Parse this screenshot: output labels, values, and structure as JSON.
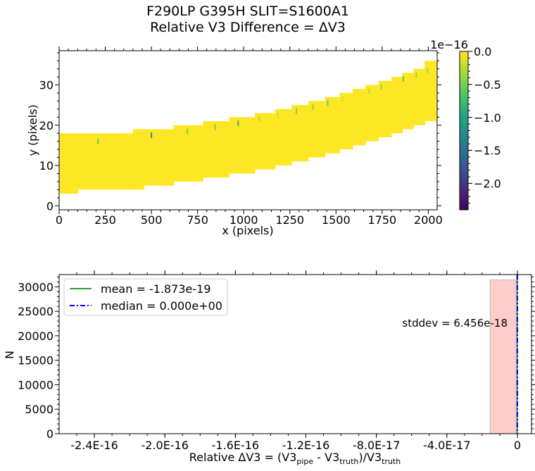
{
  "title_line1": "F290LP   G395H   SLIT=S1600A1",
  "title_line2": "Relative V3 Difference = ΔV3",
  "chart_data": [
    {
      "type": "heatmap",
      "title": "F290LP   G395H   SLIT=S1600A1 / Relative V3 Difference = ΔV3",
      "xlabel": "x (pixels)",
      "ylabel": "y (pixels)",
      "xlim": [
        0,
        2048
      ],
      "ylim": [
        -1,
        38.5
      ],
      "xticks": [
        0,
        250,
        500,
        750,
        1000,
        1250,
        1500,
        1750,
        2000
      ],
      "yticks": [
        0,
        10,
        20,
        30
      ],
      "colorbar": {
        "label_exponent": "1e−16",
        "vmin": -2.4,
        "vmax": 0.0,
        "ticks": [
          0.0,
          -0.5,
          -1.0,
          -1.5,
          -2.0
        ],
        "tick_labels": [
          "0.0",
          "−0.5",
          "−1.0",
          "−1.5",
          "−2.0"
        ],
        "colormap": "viridis"
      },
      "trace_steps": [
        {
          "x0": 0,
          "x1": 100,
          "y0": 3,
          "y1": 18
        },
        {
          "x0": 100,
          "x1": 400,
          "y0": 4,
          "y1": 18
        },
        {
          "x0": 400,
          "x1": 460,
          "y0": 4,
          "y1": 19
        },
        {
          "x0": 460,
          "x1": 620,
          "y0": 5,
          "y1": 19
        },
        {
          "x0": 620,
          "x1": 780,
          "y0": 6,
          "y1": 20
        },
        {
          "x0": 780,
          "x1": 920,
          "y0": 7,
          "y1": 21
        },
        {
          "x0": 920,
          "x1": 1060,
          "y0": 8,
          "y1": 22
        },
        {
          "x0": 1060,
          "x1": 1170,
          "y0": 9,
          "y1": 23
        },
        {
          "x0": 1170,
          "x1": 1260,
          "y0": 10,
          "y1": 24
        },
        {
          "x0": 1260,
          "x1": 1350,
          "y0": 11,
          "y1": 25
        },
        {
          "x0": 1350,
          "x1": 1440,
          "y0": 12,
          "y1": 26
        },
        {
          "x0": 1440,
          "x1": 1520,
          "y0": 13,
          "y1": 27
        },
        {
          "x0": 1520,
          "x1": 1590,
          "y0": 14,
          "y1": 28
        },
        {
          "x0": 1590,
          "x1": 1660,
          "y0": 15,
          "y1": 29
        },
        {
          "x0": 1660,
          "x1": 1730,
          "y0": 16,
          "y1": 30
        },
        {
          "x0": 1730,
          "x1": 1800,
          "y0": 17,
          "y1": 31
        },
        {
          "x0": 1800,
          "x1": 1860,
          "y0": 18,
          "y1": 32
        },
        {
          "x0": 1860,
          "x1": 1920,
          "y0": 19,
          "y1": 33
        },
        {
          "x0": 1920,
          "x1": 1980,
          "y0": 20,
          "y1": 34
        },
        {
          "x0": 1980,
          "x1": 2048,
          "y0": 21,
          "y1": 36
        }
      ],
      "outlier_pixels": [
        {
          "x": 210,
          "y": 16,
          "value": -0.6
        },
        {
          "x": 500,
          "y": 17.5,
          "value": -1.2
        },
        {
          "x": 695,
          "y": 18.5,
          "value": -0.5
        },
        {
          "x": 845,
          "y": 19.5,
          "value": -0.5
        },
        {
          "x": 970,
          "y": 20.5,
          "value": -0.8
        },
        {
          "x": 1085,
          "y": 21.5,
          "value": -0.3
        },
        {
          "x": 1185,
          "y": 22.5,
          "value": -0.2
        },
        {
          "x": 1285,
          "y": 23.5,
          "value": -0.5
        },
        {
          "x": 1375,
          "y": 24.5,
          "value": -0.4
        },
        {
          "x": 1455,
          "y": 25.5,
          "value": -0.6
        },
        {
          "x": 1535,
          "y": 26.5,
          "value": -0.2
        },
        {
          "x": 1680,
          "y": 28.5,
          "value": -0.3
        },
        {
          "x": 1745,
          "y": 29.5,
          "value": -0.4
        },
        {
          "x": 1865,
          "y": 31.5,
          "value": -0.6
        },
        {
          "x": 1935,
          "y": 32.5,
          "value": -0.4
        },
        {
          "x": 1995,
          "y": 33.5,
          "value": -0.3
        }
      ]
    },
    {
      "type": "bar",
      "subtype": "histogram",
      "xlabel": "Relative ΔV3 = (V3",
      "xlabel_sub1": "pipe",
      "xlabel_mid": " - V3",
      "xlabel_sub2": "truth",
      "xlabel_mid2": ")/V3",
      "xlabel_sub3": "truth",
      "ylabel": "N",
      "xlim": [
        -2.6e-16,
        8e-18
      ],
      "ylim": [
        0,
        32500
      ],
      "xticks": [
        -2.4e-16,
        -2e-16,
        -1.6e-16,
        -1.2e-16,
        -8e-17,
        -4e-17,
        0
      ],
      "xtick_labels": [
        "-2.4E-16",
        "-2.0E-16",
        "-1.6E-16",
        "-1.2E-16",
        "-8.0E-17",
        "-4.0E-17",
        "0"
      ],
      "yticks": [
        0,
        5000,
        10000,
        15000,
        20000,
        25000,
        30000
      ],
      "bins": [
        {
          "x0": -1.55e-17,
          "x1": 0,
          "count": 31400
        }
      ],
      "mean_line": {
        "value": -1.873e-19,
        "label": "mean = -1.873e-19",
        "color": "#2ca02c"
      },
      "median_line": {
        "value": 0.0,
        "label": "median = 0.000e+00",
        "color": "#0000ff"
      },
      "stddev_text": "stddev = 6.456e-18",
      "bar_color": "#ffcccc"
    }
  ]
}
